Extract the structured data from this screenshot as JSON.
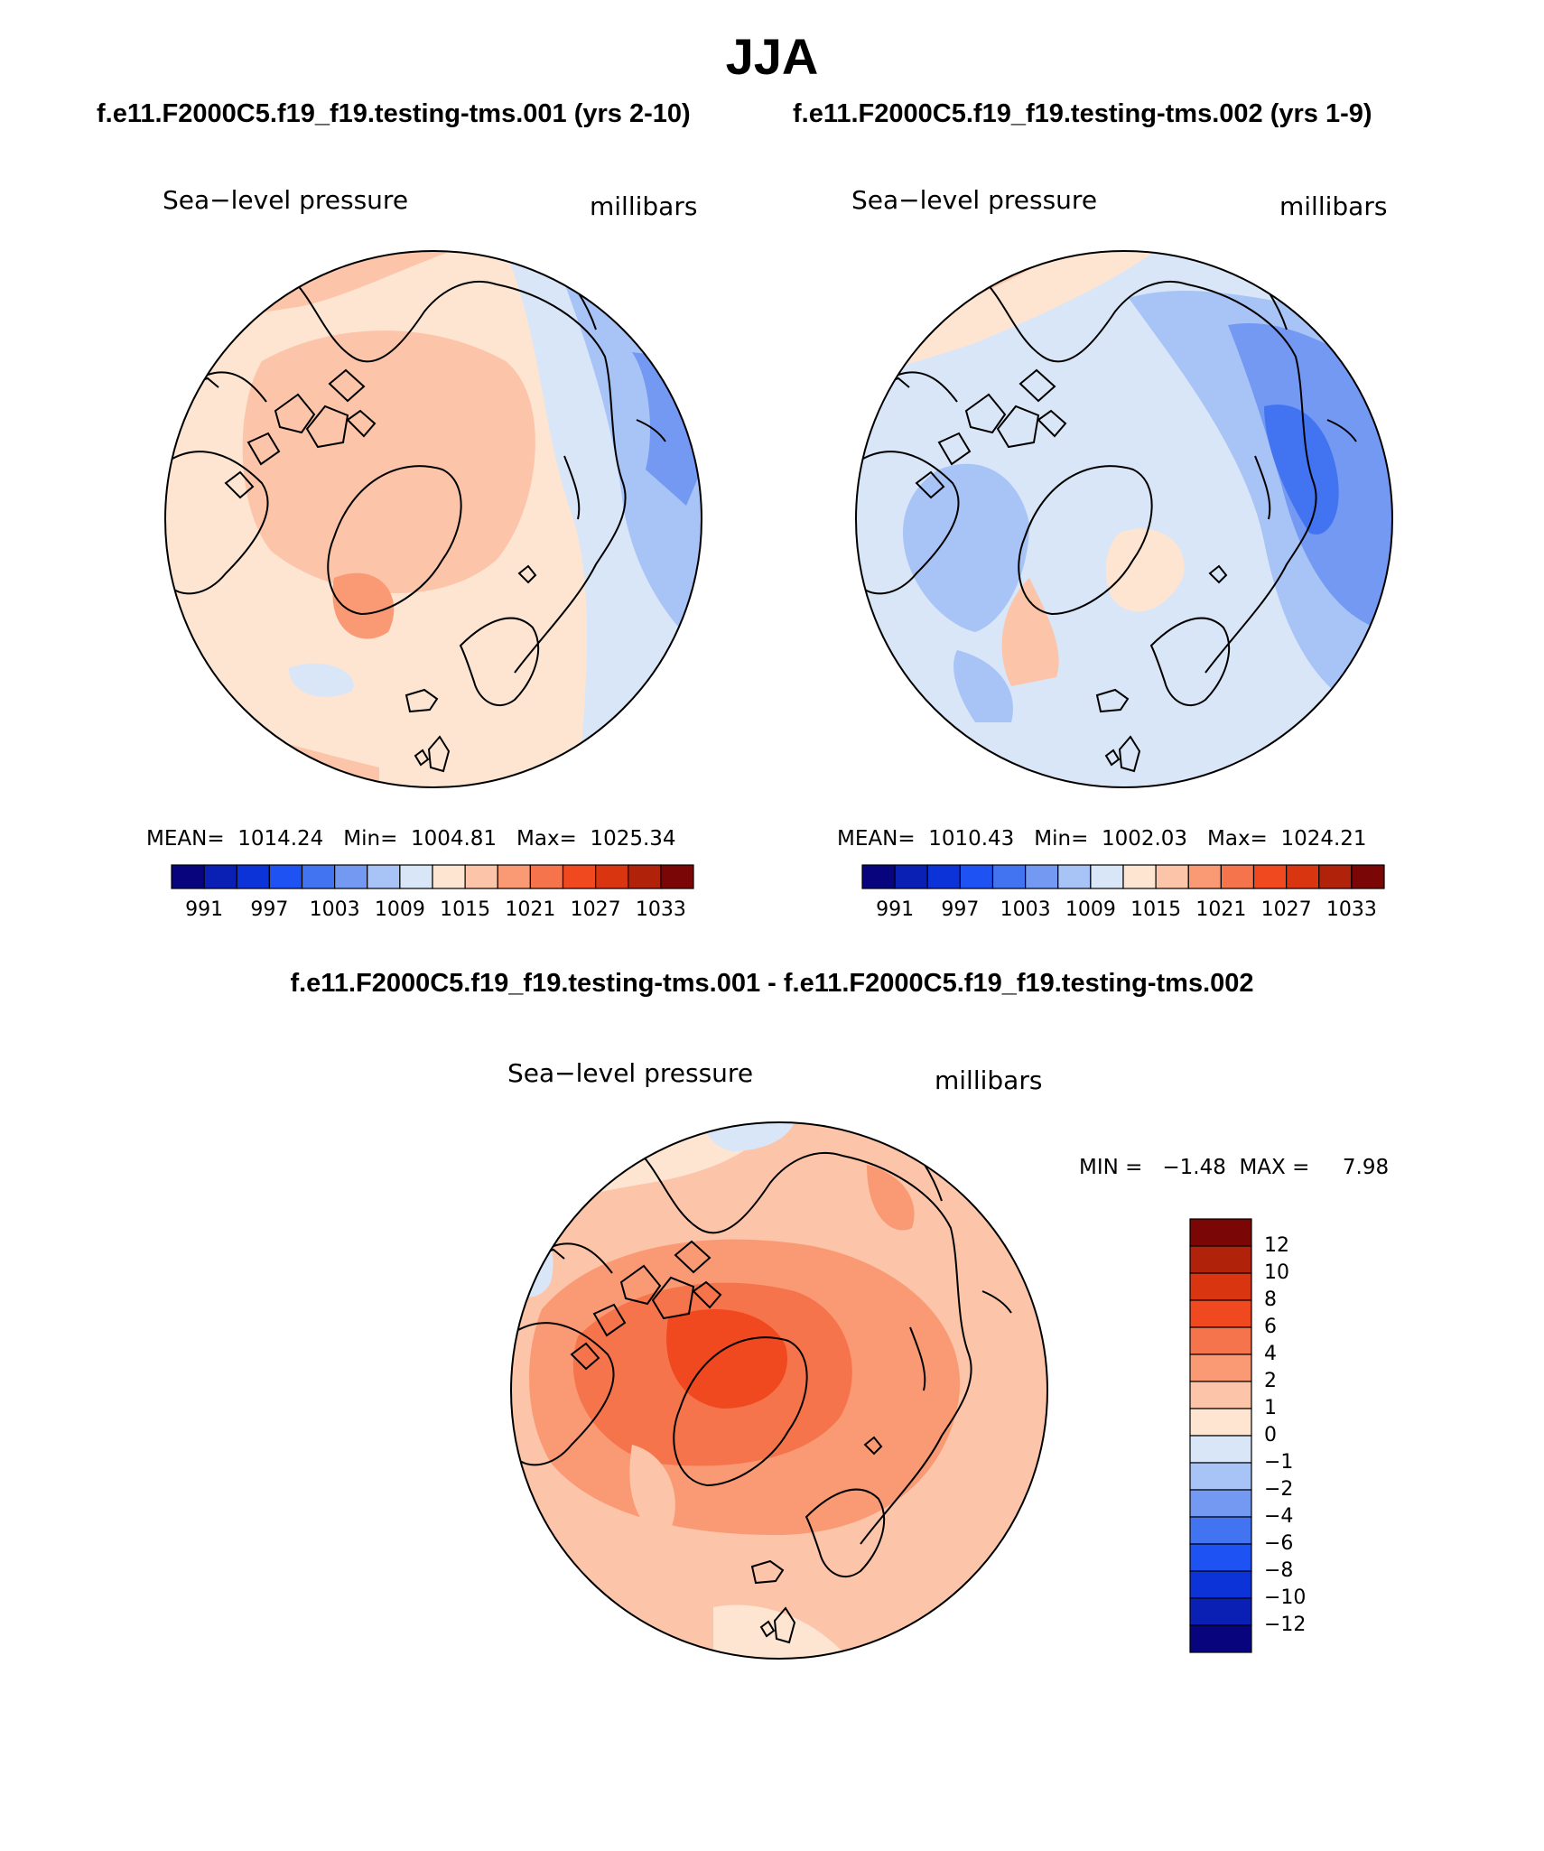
{
  "title": "JJA",
  "cases": {
    "left": "f.e11.F2000C5.f19_f19.testing-tms.001 (yrs 2-10)",
    "right": "f.e11.F2000C5.f19_f19.testing-tms.002 (yrs 1-9)",
    "diff": "f.e11.F2000C5.f19_f19.testing-tms.001 - f.e11.F2000C5.f19_f19.testing-tms.002"
  },
  "panels": [
    {
      "variable": "Sea−level pressure",
      "units": "millibars",
      "stats": "MEAN=  1014.24   Min=  1004.81   Max=  1025.34",
      "mean": 1014.24,
      "min": 1004.81,
      "max": 1025.34
    },
    {
      "variable": "Sea−level pressure",
      "units": "millibars",
      "stats": "MEAN=  1010.43   Min=  1002.03   Max=  1024.21",
      "mean": 1010.43,
      "min": 1002.03,
      "max": 1024.21
    },
    {
      "variable": "Sea−level pressure",
      "units": "millibars",
      "stats": "MIN =   −1.48  MAX =     7.98",
      "min": -1.48,
      "max": 7.98
    }
  ],
  "colorbar_abs": {
    "labels": [
      "991",
      "997",
      "1003",
      "1009",
      "1015",
      "1021",
      "1027",
      "1033"
    ],
    "colors": [
      "#07047d",
      "#0a1fb4",
      "#0c33d8",
      "#1f52f2",
      "#4273f0",
      "#7399f2",
      "#a8c3f6",
      "#d8e6f8",
      "#fde5d2",
      "#fcc4a8",
      "#fa9a74",
      "#f6744c",
      "#f0481f",
      "#d83510",
      "#b0220a",
      "#7a0606"
    ]
  },
  "colorbar_diff": {
    "labels": [
      "12",
      "10",
      "8",
      "6",
      "4",
      "2",
      "1",
      "0",
      "−1",
      "−2",
      "−4",
      "−6",
      "−8",
      "−10",
      "−12"
    ],
    "colors": [
      "#7a0606",
      "#b0220a",
      "#d83510",
      "#f0481f",
      "#f6744c",
      "#fa9a74",
      "#fcc4a8",
      "#fde5d2",
      "#d8e6f8",
      "#a8c3f6",
      "#7399f2",
      "#4273f0",
      "#1f52f2",
      "#0c33d8",
      "#0a1fb4",
      "#07047d"
    ]
  },
  "colors": {
    "land_outline": "#000000",
    "pale_orange": "#fde5d2",
    "light_orange": "#fcc4a8",
    "mid_orange": "#fa9a74",
    "orange": "#f6744c",
    "red_orange": "#f0481f",
    "pale_blue": "#d8e6f8",
    "light_blue": "#a8c3f6",
    "mid_blue": "#7399f2",
    "blue": "#4273f0"
  }
}
